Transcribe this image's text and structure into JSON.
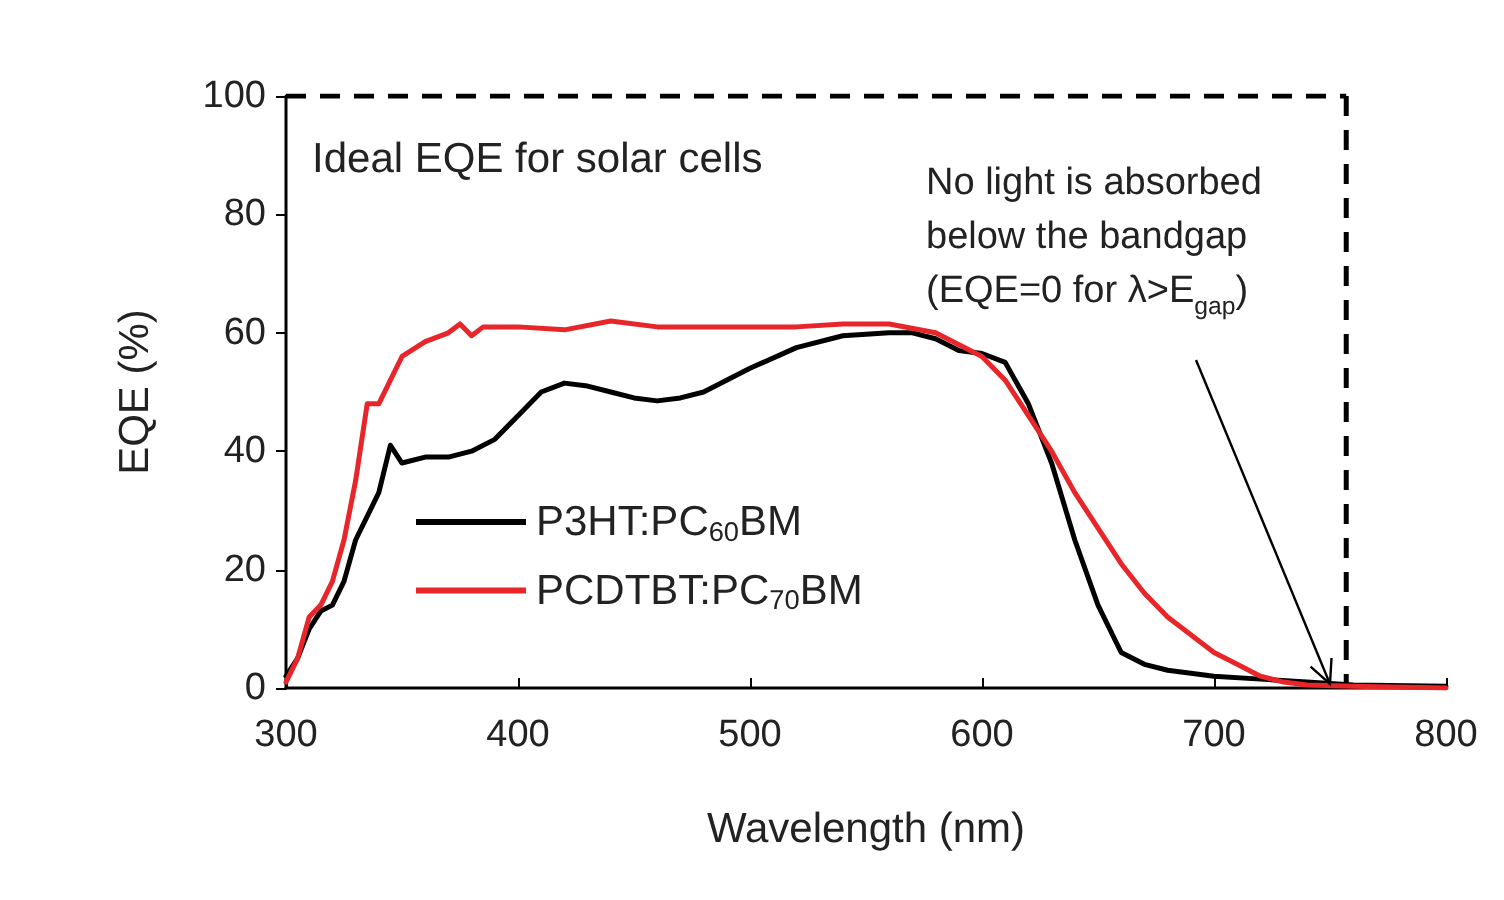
{
  "chart_data": {
    "type": "line",
    "xlabel": "Wavelength (nm)",
    "ylabel": "EQE (%)",
    "xlim": [
      300,
      800
    ],
    "xticks": [
      300,
      400,
      500,
      600,
      700,
      800
    ],
    "ylim": [
      0,
      100
    ],
    "yticks": [
      0,
      20,
      40,
      60,
      80,
      100
    ],
    "grid": false,
    "legend": "bottom left",
    "marker": "none",
    "series": [
      {
        "name": "P3HT:PC$_{60}$BM",
        "color": "#000000",
        "x": [
          300,
          305,
          310,
          315,
          320,
          325,
          330,
          340,
          345,
          350,
          360,
          370,
          380,
          390,
          400,
          410,
          420,
          430,
          440,
          450,
          460,
          470,
          480,
          500,
          520,
          540,
          560,
          570,
          580,
          590,
          600,
          610,
          620,
          630,
          640,
          650,
          660,
          670,
          680,
          700,
          720,
          740,
          760,
          800
        ],
        "values": [
          2,
          5,
          10,
          13,
          14,
          18,
          25,
          33,
          41,
          38,
          39,
          39,
          40,
          42,
          46,
          50,
          51.5,
          51,
          50,
          49,
          48.5,
          49,
          50,
          54,
          57.5,
          59.5,
          60,
          60,
          59,
          57,
          56.5,
          55,
          48,
          38,
          25,
          14,
          6,
          4,
          3,
          2,
          1.5,
          1,
          0.5,
          0.3
        ]
      },
      {
        "name": "PCDTBT:PC$_{70}$BM",
        "color": "#e8262a",
        "x": [
          300,
          305,
          310,
          315,
          320,
          325,
          330,
          335,
          340,
          345,
          350,
          360,
          370,
          375,
          380,
          385,
          400,
          420,
          440,
          460,
          480,
          500,
          520,
          540,
          560,
          580,
          600,
          610,
          620,
          630,
          640,
          650,
          660,
          670,
          680,
          690,
          700,
          710,
          720,
          730,
          740,
          760,
          800
        ],
        "values": [
          1,
          5,
          12,
          14,
          18,
          25,
          35,
          48,
          48,
          52,
          56,
          58.5,
          60,
          61.5,
          59.5,
          61,
          61,
          60.5,
          62,
          61,
          61,
          61,
          61,
          61.5,
          61.5,
          60,
          56,
          52,
          46,
          40,
          33,
          27,
          21,
          16,
          12,
          9,
          6,
          4,
          2,
          1,
          0.5,
          0.3,
          0
        ]
      }
    ],
    "ref_lines": [
      {
        "axis": "y",
        "value": 100,
        "color": "#000000",
        "line_style": "dashed"
      },
      {
        "axis": "x",
        "value": 757,
        "color": "#000000",
        "line_style": "dashed"
      }
    ],
    "annotations": [
      "Ideal EQE for solar cells",
      {
        "text": "No light is absorbed\nbelow the bandgap\n(EQE=0 for λ>E$_{gap}$)",
        "x": 750,
        "y": 0
      }
    ]
  }
}
